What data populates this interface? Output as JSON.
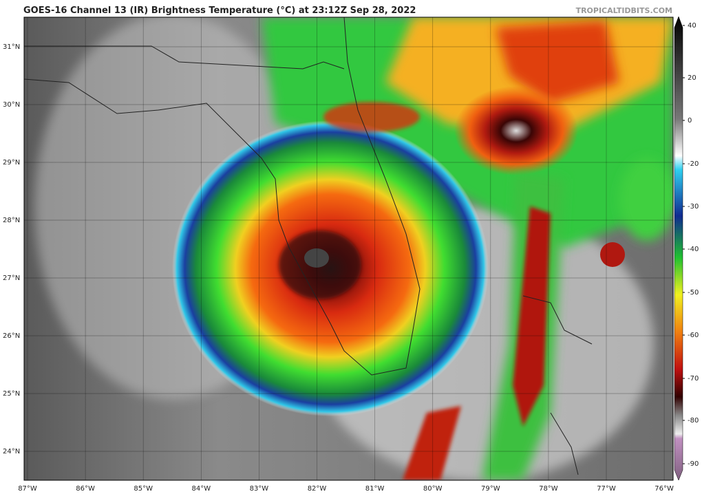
{
  "header": {
    "title": "GOES-16 Channel 13 (IR) Brightness Temperature (°C) at 23:12Z Sep 28, 2022",
    "watermark": "TROPICALTIDBITS.COM"
  },
  "map": {
    "latitude_labels": [
      "31°N",
      "30°N",
      "29°N",
      "28°N",
      "27°N",
      "26°N",
      "25°N",
      "24°N"
    ],
    "longitude_labels": [
      "87°W",
      "86°W",
      "85°W",
      "84°W",
      "83°W",
      "82°W",
      "81°W",
      "80°W",
      "79°W",
      "78°W",
      "77°W",
      "76°W"
    ]
  },
  "colorbar": {
    "ticks": [
      40,
      20,
      0,
      -20,
      -30,
      -40,
      -50,
      -60,
      -70,
      -80,
      -90
    ]
  }
}
